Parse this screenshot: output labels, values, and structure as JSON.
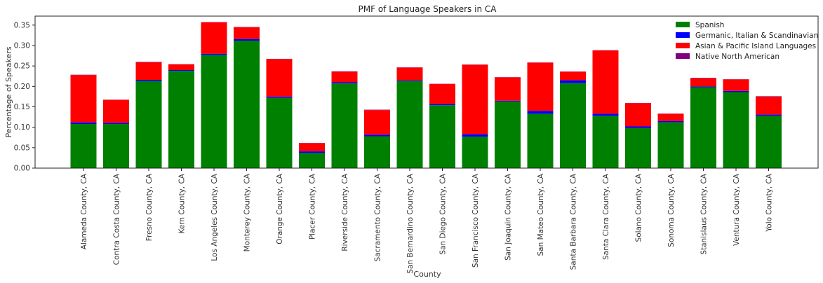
{
  "chart_data": {
    "type": "bar",
    "stacked": true,
    "title": "PMF of Language Speakers in CA",
    "xlabel": "County",
    "ylabel": "Percentage of Speakers",
    "ylim": [
      0,
      0.372
    ],
    "yticks": [
      "0.00",
      "0.05",
      "0.10",
      "0.15",
      "0.20",
      "0.25",
      "0.30",
      "0.35"
    ],
    "grid": false,
    "legend_position": "top-right",
    "categories": [
      "Alameda County, CA",
      "Contra Costa County, CA",
      "Fresno County, CA",
      "Kern County, CA",
      "Los Angeles County, CA",
      "Monterey County, CA",
      "Orange County, CA",
      "Placer County, CA",
      "Riverside County, CA",
      "Sacramento County, CA",
      "San Bernardino County, CA",
      "San Diego County, CA",
      "San Francisco County, CA",
      "San Joaquin County, CA",
      "San Mateo County, CA",
      "Santa Barbara County, CA",
      "Santa Clara County, CA",
      "Solano County, CA",
      "Sonoma County, CA",
      "Stanislaus County, CA",
      "Ventura County, CA",
      "Yolo County, CA"
    ],
    "series": [
      {
        "name": "Spanish",
        "color": "#008000",
        "values": [
          0.108,
          0.108,
          0.213,
          0.238,
          0.277,
          0.312,
          0.172,
          0.037,
          0.207,
          0.078,
          0.213,
          0.154,
          0.077,
          0.163,
          0.133,
          0.208,
          0.128,
          0.098,
          0.112,
          0.198,
          0.186,
          0.128
        ]
      },
      {
        "name": "Germanic, Italian & Scandinavian",
        "color": "#0000ff",
        "values": [
          0.004,
          0.003,
          0.003,
          0.002,
          0.003,
          0.004,
          0.003,
          0.004,
          0.003,
          0.004,
          0.002,
          0.003,
          0.006,
          0.002,
          0.007,
          0.007,
          0.005,
          0.004,
          0.003,
          0.002,
          0.003,
          0.003
        ]
      },
      {
        "name": "Asian & Pacific Island Languages",
        "color": "#ff0000",
        "values": [
          0.116,
          0.056,
          0.043,
          0.014,
          0.077,
          0.029,
          0.092,
          0.02,
          0.026,
          0.06,
          0.031,
          0.049,
          0.17,
          0.057,
          0.118,
          0.021,
          0.155,
          0.057,
          0.018,
          0.02,
          0.028,
          0.044
        ]
      },
      {
        "name": "Native North American",
        "color": "#800080",
        "values": [
          0.0005,
          0.0005,
          0.001,
          0.0005,
          0.0005,
          0.0005,
          0.0005,
          0.0005,
          0.001,
          0.001,
          0.0005,
          0.0005,
          0.0005,
          0.0005,
          0.0005,
          0.0005,
          0.0005,
          0.0005,
          0.0005,
          0.001,
          0.0005,
          0.001
        ]
      }
    ]
  }
}
